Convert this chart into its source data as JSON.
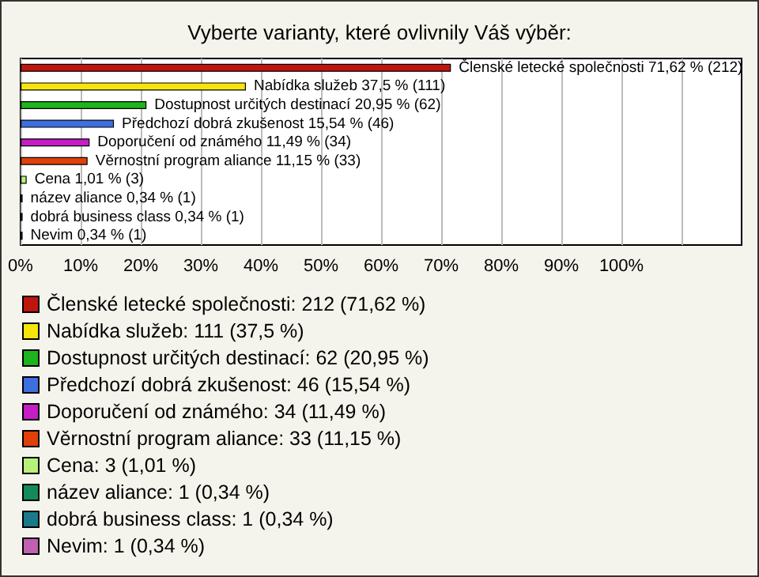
{
  "chart_data": {
    "type": "bar",
    "orientation": "horizontal",
    "stacked": true,
    "title": "Vyberte varianty, které ovlivnily Váš výběr:",
    "categories": [
      null,
      null,
      null,
      null,
      null,
      null,
      null,
      null,
      null,
      null
    ],
    "series": [
      {
        "name": "Členské letecké společnosti: 212 (71,62 %)",
        "color": "#c0150f",
        "values": [
          71.62,
          null,
          null,
          null,
          null,
          null,
          null,
          null,
          null,
          null
        ],
        "value_labels": [
          "Členské letecké společnosti 71,62 % (212)",
          null,
          null,
          null,
          null,
          null,
          null,
          null,
          null,
          null
        ]
      },
      {
        "name": "Nabídka služeb: 111 (37,5 %)",
        "color": "#f5e50a",
        "values": [
          null,
          37.5,
          null,
          null,
          null,
          null,
          null,
          null,
          null,
          null
        ],
        "value_labels": [
          null,
          "Nabídka služeb 37,5 % (111)",
          null,
          null,
          null,
          null,
          null,
          null,
          null,
          null
        ]
      },
      {
        "name": "Dostupnost určitých destinací: 62 (20,95 %)",
        "color": "#1db41d",
        "values": [
          null,
          null,
          20.95,
          null,
          null,
          null,
          null,
          null,
          null,
          null
        ],
        "value_labels": [
          null,
          null,
          "Dostupnost určitých destinací 20,95 % (62)",
          null,
          null,
          null,
          null,
          null,
          null,
          null
        ]
      },
      {
        "name": "Předchozí dobrá zkušenost: 46 (15,54 %)",
        "color": "#3e6fe0",
        "values": [
          null,
          null,
          null,
          15.54,
          null,
          null,
          null,
          null,
          null,
          null
        ],
        "value_labels": [
          null,
          null,
          null,
          "Předchozí dobrá zkušenost 15,54 % (46)",
          null,
          null,
          null,
          null,
          null,
          null
        ]
      },
      {
        "name": "Doporučení od známého: 34 (11,49 %)",
        "color": "#c41ec4",
        "values": [
          null,
          null,
          null,
          null,
          11.49,
          null,
          null,
          null,
          null,
          null
        ],
        "value_labels": [
          null,
          null,
          null,
          null,
          "Doporučení od známého 11,49 % (34)",
          null,
          null,
          null,
          null,
          null
        ]
      },
      {
        "name": "Věrnostní program aliance: 33 (11,15 %)",
        "color": "#e0400a",
        "values": [
          null,
          null,
          null,
          null,
          null,
          11.15,
          null,
          null,
          null,
          null
        ],
        "value_labels": [
          null,
          null,
          null,
          null,
          null,
          "Věrnostní program aliance 11,15 % (33)",
          null,
          null,
          null,
          null
        ]
      },
      {
        "name": "Cena: 3 (1,01 %)",
        "color": "#b8f07a",
        "values": [
          null,
          null,
          null,
          null,
          null,
          null,
          1.01,
          null,
          null,
          null
        ],
        "value_labels": [
          null,
          null,
          null,
          null,
          null,
          null,
          "Cena 1,01 % (3)",
          null,
          null,
          null
        ]
      },
      {
        "name": "název aliance: 1 (0,34 %)",
        "color": "#138a5a",
        "values": [
          null,
          null,
          null,
          null,
          null,
          null,
          null,
          0.34,
          null,
          null
        ],
        "value_labels": [
          null,
          null,
          null,
          null,
          null,
          null,
          null,
          "název aliance 0,34 % (1)",
          null,
          null
        ]
      },
      {
        "name": "dobrá business class: 1 (0,34 %)",
        "color": "#1a7a8a",
        "values": [
          null,
          null,
          null,
          null,
          null,
          null,
          null,
          null,
          0.34,
          null
        ],
        "value_labels": [
          null,
          null,
          null,
          null,
          null,
          null,
          null,
          null,
          "dobrá business class 0,34 % (1)",
          null
        ]
      },
      {
        "name": "Nevim: 1 (0,34 %)",
        "color": "#c060b0",
        "values": [
          null,
          null,
          null,
          null,
          null,
          null,
          null,
          null,
          null,
          0.34
        ],
        "value_labels": [
          null,
          null,
          null,
          null,
          null,
          null,
          null,
          null,
          null,
          "Nevim 0,34 % (1)"
        ]
      }
    ],
    "xlim": [
      0,
      120
    ],
    "xticks": [
      {
        "value": 0,
        "label": "0%"
      },
      {
        "value": 10,
        "label": "10%"
      },
      {
        "value": 20,
        "label": "20%"
      },
      {
        "value": 30,
        "label": "30%"
      },
      {
        "value": 40,
        "label": "40%"
      },
      {
        "value": 50,
        "label": "50%"
      },
      {
        "value": 60,
        "label": "60%"
      },
      {
        "value": 70,
        "label": "70%"
      },
      {
        "value": 80,
        "label": "80%"
      },
      {
        "value": 90,
        "label": "90%"
      },
      {
        "value": 100,
        "label": "100%"
      },
      {
        "value": 110,
        "label": null
      }
    ],
    "grid": "x",
    "legend": "bottom",
    "tick_labels": "x"
  }
}
